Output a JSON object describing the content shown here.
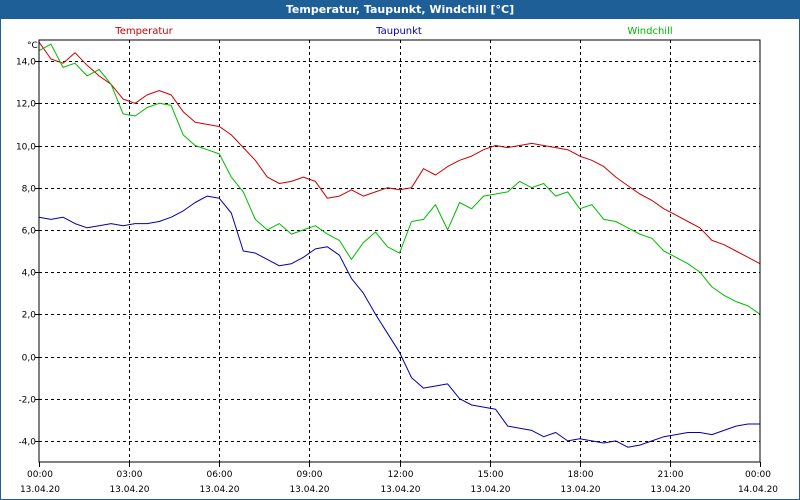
{
  "window": {
    "title": "Temperatur, Taupunkt, Windchill [°C]"
  },
  "chart_data": {
    "type": "line",
    "title": "Temperatur, Taupunkt, Windchill [°C]",
    "yunit": "°C",
    "ylim": [
      -5,
      15
    ],
    "yticks": [
      "14,0",
      "12,0",
      "10,0",
      "8,0",
      "6,0",
      "4,0",
      "2,0",
      "0,0",
      "-2,0",
      "-4,0"
    ],
    "ytick_values": [
      14,
      12,
      10,
      8,
      6,
      4,
      2,
      0,
      -2,
      -4
    ],
    "xlim": [
      0,
      24
    ],
    "xticks": [
      {
        "time": "00:00",
        "date": "13.04.20"
      },
      {
        "time": "03:00",
        "date": "13.04.20"
      },
      {
        "time": "06:00",
        "date": "13.04.20"
      },
      {
        "time": "09:00",
        "date": "13.04.20"
      },
      {
        "time": "12:00",
        "date": "13.04.20"
      },
      {
        "time": "15:00",
        "date": "13.04.20"
      },
      {
        "time": "18:00",
        "date": "13.04.20"
      },
      {
        "time": "21:00",
        "date": "13.04.20"
      },
      {
        "time": "00:00",
        "date": "14.04.20"
      }
    ],
    "xtick_values": [
      0,
      3,
      6,
      9,
      12,
      15,
      18,
      21,
      24
    ],
    "grid": true,
    "series": [
      {
        "name": "Temperatur",
        "color": "#cc0000",
        "x": [
          0,
          0.4,
          0.8,
          1.2,
          1.6,
          2.0,
          2.4,
          2.8,
          3.2,
          3.6,
          4.0,
          4.4,
          4.8,
          5.2,
          5.6,
          6.0,
          6.4,
          6.8,
          7.2,
          7.6,
          8.0,
          8.4,
          8.8,
          9.2,
          9.6,
          10.0,
          10.4,
          10.8,
          11.2,
          11.6,
          12.0,
          12.4,
          12.8,
          13.2,
          13.6,
          14.0,
          14.4,
          14.8,
          15.2,
          15.6,
          16.0,
          16.4,
          16.8,
          17.2,
          17.6,
          18.0,
          18.4,
          18.8,
          19.2,
          19.6,
          20.0,
          20.4,
          20.8,
          21.2,
          21.6,
          22.0,
          22.4,
          22.8,
          23.2,
          23.6,
          24.0
        ],
        "y": [
          14.9,
          14.1,
          13.9,
          14.4,
          13.8,
          13.3,
          12.9,
          12.2,
          12.0,
          12.4,
          12.6,
          12.4,
          11.6,
          11.1,
          11.0,
          10.9,
          10.5,
          9.9,
          9.3,
          8.5,
          8.2,
          8.3,
          8.5,
          8.3,
          7.5,
          7.6,
          7.9,
          7.6,
          7.8,
          8.0,
          7.9,
          8.0,
          8.9,
          8.6,
          9.0,
          9.3,
          9.5,
          9.8,
          10.0,
          9.9,
          10.0,
          10.1,
          10.0,
          9.9,
          9.8,
          9.5,
          9.3,
          9.0,
          8.5,
          8.1,
          7.7,
          7.4,
          7.0,
          6.7,
          6.4,
          6.1,
          5.5,
          5.3,
          5.0,
          4.7,
          4.4
        ]
      },
      {
        "name": "Taupunkt",
        "color": "#0000b0",
        "x": [
          0,
          0.4,
          0.8,
          1.2,
          1.6,
          2.0,
          2.4,
          2.8,
          3.2,
          3.6,
          4.0,
          4.4,
          4.8,
          5.2,
          5.6,
          6.0,
          6.4,
          6.8,
          7.2,
          7.6,
          8.0,
          8.4,
          8.8,
          9.2,
          9.6,
          10.0,
          10.4,
          10.8,
          11.2,
          11.6,
          12.0,
          12.4,
          12.8,
          13.2,
          13.6,
          14.0,
          14.4,
          14.8,
          15.2,
          15.6,
          16.0,
          16.4,
          16.8,
          17.2,
          17.6,
          18.0,
          18.4,
          18.8,
          19.2,
          19.6,
          20.0,
          20.4,
          20.8,
          21.2,
          21.6,
          22.0,
          22.4,
          22.8,
          23.2,
          23.6,
          24.0
        ],
        "y": [
          6.6,
          6.5,
          6.6,
          6.3,
          6.1,
          6.2,
          6.3,
          6.2,
          6.3,
          6.3,
          6.4,
          6.6,
          6.9,
          7.3,
          7.6,
          7.5,
          6.8,
          5.0,
          4.9,
          4.6,
          4.3,
          4.4,
          4.7,
          5.1,
          5.2,
          4.8,
          3.7,
          3.0,
          2.0,
          1.1,
          0.2,
          -1.0,
          -1.5,
          -1.4,
          -1.3,
          -2.0,
          -2.3,
          -2.4,
          -2.5,
          -3.3,
          -3.4,
          -3.5,
          -3.8,
          -3.6,
          -4.0,
          -3.9,
          -4.0,
          -4.1,
          -4.0,
          -4.3,
          -4.2,
          -4.0,
          -3.8,
          -3.7,
          -3.6,
          -3.6,
          -3.7,
          -3.5,
          -3.3,
          -3.2,
          -3.2
        ]
      },
      {
        "name": "Windchill",
        "color": "#00bb00",
        "x": [
          0,
          0.4,
          0.8,
          1.2,
          1.6,
          2.0,
          2.4,
          2.8,
          3.2,
          3.6,
          4.0,
          4.4,
          4.8,
          5.2,
          5.6,
          6.0,
          6.4,
          6.8,
          7.2,
          7.6,
          8.0,
          8.4,
          8.8,
          9.2,
          9.6,
          10.0,
          10.4,
          10.8,
          11.2,
          11.6,
          12.0,
          12.4,
          12.8,
          13.2,
          13.6,
          14.0,
          14.4,
          14.8,
          15.2,
          15.6,
          16.0,
          16.4,
          16.8,
          17.2,
          17.6,
          18.0,
          18.4,
          18.8,
          19.2,
          19.6,
          20.0,
          20.4,
          20.8,
          21.2,
          21.6,
          22.0,
          22.4,
          22.8,
          23.2,
          23.6,
          24.0
        ],
        "y": [
          14.5,
          14.8,
          13.7,
          13.9,
          13.3,
          13.6,
          12.9,
          11.5,
          11.4,
          11.8,
          12.0,
          11.9,
          10.5,
          10.0,
          9.8,
          9.6,
          8.5,
          7.8,
          6.5,
          6.0,
          6.3,
          5.8,
          6.0,
          6.2,
          5.8,
          5.5,
          4.6,
          5.4,
          5.9,
          5.2,
          4.9,
          6.4,
          6.5,
          7.2,
          6.0,
          7.3,
          7.0,
          7.6,
          7.7,
          7.8,
          8.3,
          8.0,
          8.2,
          7.6,
          7.8,
          7.0,
          7.2,
          6.5,
          6.4,
          6.1,
          5.8,
          5.6,
          5.0,
          4.7,
          4.4,
          4.0,
          3.3,
          2.9,
          2.6,
          2.4,
          2.0
        ]
      }
    ]
  }
}
